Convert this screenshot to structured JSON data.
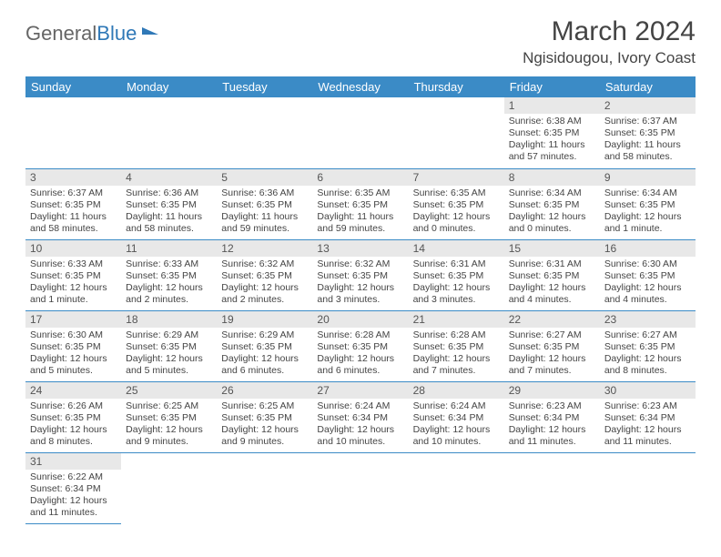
{
  "logo": {
    "text1": "General",
    "text2": "Blue",
    "accent": "#2f78b7"
  },
  "header": {
    "month_title": "March 2024",
    "location": "Ngisidougou, Ivory Coast"
  },
  "colors": {
    "header_bg": "#3b8bc6",
    "header_fg": "#ffffff",
    "daynum_bg": "#e8e8e8",
    "row_border": "#3b8bc6"
  },
  "weekdays": [
    "Sunday",
    "Monday",
    "Tuesday",
    "Wednesday",
    "Thursday",
    "Friday",
    "Saturday"
  ],
  "grid": [
    [
      null,
      null,
      null,
      null,
      null,
      {
        "d": "1",
        "sr": "Sunrise: 6:38 AM",
        "ss": "Sunset: 6:35 PM",
        "dl": "Daylight: 11 hours and 57 minutes."
      },
      {
        "d": "2",
        "sr": "Sunrise: 6:37 AM",
        "ss": "Sunset: 6:35 PM",
        "dl": "Daylight: 11 hours and 58 minutes."
      }
    ],
    [
      {
        "d": "3",
        "sr": "Sunrise: 6:37 AM",
        "ss": "Sunset: 6:35 PM",
        "dl": "Daylight: 11 hours and 58 minutes."
      },
      {
        "d": "4",
        "sr": "Sunrise: 6:36 AM",
        "ss": "Sunset: 6:35 PM",
        "dl": "Daylight: 11 hours and 58 minutes."
      },
      {
        "d": "5",
        "sr": "Sunrise: 6:36 AM",
        "ss": "Sunset: 6:35 PM",
        "dl": "Daylight: 11 hours and 59 minutes."
      },
      {
        "d": "6",
        "sr": "Sunrise: 6:35 AM",
        "ss": "Sunset: 6:35 PM",
        "dl": "Daylight: 11 hours and 59 minutes."
      },
      {
        "d": "7",
        "sr": "Sunrise: 6:35 AM",
        "ss": "Sunset: 6:35 PM",
        "dl": "Daylight: 12 hours and 0 minutes."
      },
      {
        "d": "8",
        "sr": "Sunrise: 6:34 AM",
        "ss": "Sunset: 6:35 PM",
        "dl": "Daylight: 12 hours and 0 minutes."
      },
      {
        "d": "9",
        "sr": "Sunrise: 6:34 AM",
        "ss": "Sunset: 6:35 PM",
        "dl": "Daylight: 12 hours and 1 minute."
      }
    ],
    [
      {
        "d": "10",
        "sr": "Sunrise: 6:33 AM",
        "ss": "Sunset: 6:35 PM",
        "dl": "Daylight: 12 hours and 1 minute."
      },
      {
        "d": "11",
        "sr": "Sunrise: 6:33 AM",
        "ss": "Sunset: 6:35 PM",
        "dl": "Daylight: 12 hours and 2 minutes."
      },
      {
        "d": "12",
        "sr": "Sunrise: 6:32 AM",
        "ss": "Sunset: 6:35 PM",
        "dl": "Daylight: 12 hours and 2 minutes."
      },
      {
        "d": "13",
        "sr": "Sunrise: 6:32 AM",
        "ss": "Sunset: 6:35 PM",
        "dl": "Daylight: 12 hours and 3 minutes."
      },
      {
        "d": "14",
        "sr": "Sunrise: 6:31 AM",
        "ss": "Sunset: 6:35 PM",
        "dl": "Daylight: 12 hours and 3 minutes."
      },
      {
        "d": "15",
        "sr": "Sunrise: 6:31 AM",
        "ss": "Sunset: 6:35 PM",
        "dl": "Daylight: 12 hours and 4 minutes."
      },
      {
        "d": "16",
        "sr": "Sunrise: 6:30 AM",
        "ss": "Sunset: 6:35 PM",
        "dl": "Daylight: 12 hours and 4 minutes."
      }
    ],
    [
      {
        "d": "17",
        "sr": "Sunrise: 6:30 AM",
        "ss": "Sunset: 6:35 PM",
        "dl": "Daylight: 12 hours and 5 minutes."
      },
      {
        "d": "18",
        "sr": "Sunrise: 6:29 AM",
        "ss": "Sunset: 6:35 PM",
        "dl": "Daylight: 12 hours and 5 minutes."
      },
      {
        "d": "19",
        "sr": "Sunrise: 6:29 AM",
        "ss": "Sunset: 6:35 PM",
        "dl": "Daylight: 12 hours and 6 minutes."
      },
      {
        "d": "20",
        "sr": "Sunrise: 6:28 AM",
        "ss": "Sunset: 6:35 PM",
        "dl": "Daylight: 12 hours and 6 minutes."
      },
      {
        "d": "21",
        "sr": "Sunrise: 6:28 AM",
        "ss": "Sunset: 6:35 PM",
        "dl": "Daylight: 12 hours and 7 minutes."
      },
      {
        "d": "22",
        "sr": "Sunrise: 6:27 AM",
        "ss": "Sunset: 6:35 PM",
        "dl": "Daylight: 12 hours and 7 minutes."
      },
      {
        "d": "23",
        "sr": "Sunrise: 6:27 AM",
        "ss": "Sunset: 6:35 PM",
        "dl": "Daylight: 12 hours and 8 minutes."
      }
    ],
    [
      {
        "d": "24",
        "sr": "Sunrise: 6:26 AM",
        "ss": "Sunset: 6:35 PM",
        "dl": "Daylight: 12 hours and 8 minutes."
      },
      {
        "d": "25",
        "sr": "Sunrise: 6:25 AM",
        "ss": "Sunset: 6:35 PM",
        "dl": "Daylight: 12 hours and 9 minutes."
      },
      {
        "d": "26",
        "sr": "Sunrise: 6:25 AM",
        "ss": "Sunset: 6:35 PM",
        "dl": "Daylight: 12 hours and 9 minutes."
      },
      {
        "d": "27",
        "sr": "Sunrise: 6:24 AM",
        "ss": "Sunset: 6:34 PM",
        "dl": "Daylight: 12 hours and 10 minutes."
      },
      {
        "d": "28",
        "sr": "Sunrise: 6:24 AM",
        "ss": "Sunset: 6:34 PM",
        "dl": "Daylight: 12 hours and 10 minutes."
      },
      {
        "d": "29",
        "sr": "Sunrise: 6:23 AM",
        "ss": "Sunset: 6:34 PM",
        "dl": "Daylight: 12 hours and 11 minutes."
      },
      {
        "d": "30",
        "sr": "Sunrise: 6:23 AM",
        "ss": "Sunset: 6:34 PM",
        "dl": "Daylight: 12 hours and 11 minutes."
      }
    ],
    [
      {
        "d": "31",
        "sr": "Sunrise: 6:22 AM",
        "ss": "Sunset: 6:34 PM",
        "dl": "Daylight: 12 hours and 11 minutes."
      },
      null,
      null,
      null,
      null,
      null,
      null
    ]
  ]
}
